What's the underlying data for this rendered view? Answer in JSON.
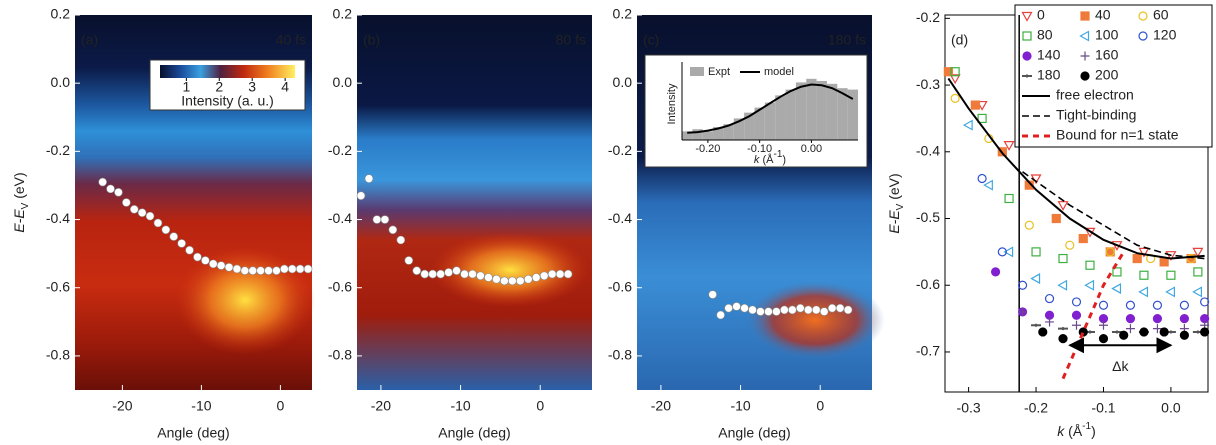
{
  "chart_data": [
    {
      "type": "heatmap",
      "panel_label": "(a)",
      "title": "40 fs",
      "xlabel": "Angle (deg)",
      "ylabel": [
        "E-E",
        "V",
        " (eV)"
      ],
      "xlim": [
        -26,
        4
      ],
      "ylim": [
        -0.9,
        0.2
      ],
      "xticks": [
        -20,
        -10,
        0
      ],
      "yticks": [
        0.2,
        {
          "value": 0,
          "label": "0.0"
        },
        -0.2,
        -0.4,
        -0.6,
        -0.8
      ],
      "points": {
        "color": "#ffffff",
        "x": [
          -22.5,
          -21.5,
          -20.5,
          -19.5,
          -18.5,
          -17.5,
          -16.5,
          -15.5,
          -14.5,
          -13.5,
          -12.5,
          -11.5,
          -10.5,
          -9.5,
          -8.5,
          -7.5,
          -6.5,
          -5.5,
          -4.5,
          -3.5,
          -2.5,
          -1.5,
          -0.5,
          0.5,
          1.5,
          2.5,
          3.5
        ],
        "y": [
          -0.29,
          -0.31,
          -0.32,
          -0.35,
          -0.37,
          -0.38,
          -0.39,
          -0.41,
          -0.43,
          -0.45,
          -0.47,
          -0.49,
          -0.51,
          -0.52,
          -0.53,
          -0.535,
          -0.54,
          -0.545,
          -0.55,
          -0.55,
          -0.55,
          -0.55,
          -0.55,
          -0.545,
          -0.545,
          -0.545,
          -0.545
        ]
      },
      "colorbar": {
        "label": "Intensity (a. u.)",
        "lim": [
          0.2,
          4.3
        ],
        "ticks": [
          1,
          2,
          3,
          4
        ]
      }
    },
    {
      "type": "heatmap",
      "panel_label": "(b)",
      "title": "80 fs",
      "xlabel": "Angle (deg)",
      "xlim": [
        -23,
        6.5
      ],
      "ylim": [
        -0.9,
        0.2
      ],
      "xticks": [
        -20,
        -10,
        0
      ],
      "yticks": [
        0.2,
        {
          "value": 0,
          "label": "0.0"
        },
        -0.2,
        -0.4,
        -0.6,
        -0.8
      ],
      "points": {
        "color": "#ffffff",
        "x": [
          -22.5,
          -21.5,
          -20.5,
          -19.5,
          -18.5,
          -17.5,
          -16.5,
          -15.5,
          -14.5,
          -13.5,
          -12.5,
          -11.5,
          -10.5,
          -9.5,
          -8.5,
          -7.5,
          -6.5,
          -5.5,
          -4.5,
          -3.5,
          -2.5,
          -1.5,
          -0.5,
          0.5,
          1.5,
          2.5,
          3.5
        ],
        "y": [
          -0.33,
          -0.28,
          -0.4,
          -0.4,
          -0.43,
          -0.46,
          -0.52,
          -0.55,
          -0.56,
          -0.56,
          -0.56,
          -0.555,
          -0.55,
          -0.56,
          -0.56,
          -0.565,
          -0.57,
          -0.575,
          -0.58,
          -0.58,
          -0.58,
          -0.575,
          -0.57,
          -0.565,
          -0.56,
          -0.56,
          -0.56
        ]
      }
    },
    {
      "type": "heatmap",
      "panel_label": "(c)",
      "title": "180 fs",
      "xlabel": "Angle (deg)",
      "xlim": [
        -23,
        6.5
      ],
      "ylim": [
        -0.9,
        0.2
      ],
      "xticks": [
        -20,
        -10,
        0
      ],
      "yticks": [
        0.2,
        {
          "value": 0,
          "label": "0.0"
        },
        -0.2,
        -0.4,
        -0.6,
        -0.8
      ],
      "points": {
        "color": "#ffffff",
        "x": [
          -13.5,
          -12.5,
          -11.5,
          -10.5,
          -9.5,
          -8.5,
          -7.5,
          -6.5,
          -5.5,
          -4.5,
          -3.5,
          -2.5,
          -1.5,
          -0.5,
          0.5,
          1.5,
          2.5,
          3.5
        ],
        "y": [
          -0.62,
          -0.68,
          -0.66,
          -0.655,
          -0.66,
          -0.665,
          -0.67,
          -0.67,
          -0.67,
          -0.665,
          -0.665,
          -0.66,
          -0.665,
          -0.665,
          -0.67,
          -0.66,
          -0.66,
          -0.665
        ]
      }
    },
    {
      "type": "scatter",
      "panel_label": "(d)",
      "xlabel": [
        "k",
        " (Å",
        "-1",
        ")"
      ],
      "ylabel": [
        "E-E",
        "V",
        " (eV)"
      ],
      "xlim": [
        -0.335,
        0.055
      ],
      "ylim": [
        -0.76,
        -0.195
      ],
      "xticks": [
        -0.3,
        -0.2,
        -0.1,
        {
          "value": 0,
          "label": "0.0"
        }
      ],
      "yticks": [
        -0.2,
        -0.3,
        -0.4,
        -0.5,
        -0.6,
        -0.7
      ],
      "vline": -0.225,
      "series": [
        {
          "name": "0",
          "color": "#e8403a",
          "marker": "tri-down",
          "filled": false,
          "x": [
            -0.32,
            -0.28,
            -0.24,
            -0.2,
            -0.16,
            -0.12,
            -0.08,
            -0.04,
            0,
            0.04
          ],
          "y": [
            -0.29,
            -0.33,
            -0.39,
            -0.44,
            -0.48,
            -0.52,
            -0.54,
            -0.55,
            -0.555,
            -0.55
          ]
        },
        {
          "name": "40",
          "color": "#f07a3a",
          "marker": "square",
          "filled": true,
          "x": [
            -0.33,
            -0.29,
            -0.25,
            -0.21,
            -0.17,
            -0.13,
            -0.09,
            -0.05,
            -0.01,
            0.03
          ],
          "y": [
            -0.28,
            -0.33,
            -0.4,
            -0.45,
            -0.5,
            -0.53,
            -0.55,
            -0.56,
            -0.565,
            -0.56
          ]
        },
        {
          "name": "60",
          "color": "#e8c020",
          "marker": "circle",
          "filled": false,
          "x": [
            -0.32,
            -0.27,
            -0.21,
            -0.15,
            -0.09,
            -0.03,
            0.03
          ],
          "y": [
            -0.32,
            -0.38,
            -0.51,
            -0.54,
            -0.55,
            -0.56,
            -0.56
          ]
        },
        {
          "name": "80",
          "color": "#3cb040",
          "marker": "square",
          "filled": false,
          "x": [
            -0.32,
            -0.28,
            -0.24,
            -0.2,
            -0.16,
            -0.12,
            -0.08,
            -0.04,
            0,
            0.04
          ],
          "y": [
            -0.28,
            -0.35,
            -0.47,
            -0.55,
            -0.56,
            -0.57,
            -0.58,
            -0.585,
            -0.585,
            -0.58
          ]
        },
        {
          "name": "100",
          "color": "#40a8e0",
          "marker": "tri-left",
          "filled": false,
          "x": [
            -0.3,
            -0.27,
            -0.24,
            -0.2,
            -0.16,
            -0.12,
            -0.08,
            -0.04,
            0,
            0.04
          ],
          "y": [
            -0.36,
            -0.45,
            -0.55,
            -0.59,
            -0.6,
            -0.6,
            -0.605,
            -0.61,
            -0.61,
            -0.61
          ]
        },
        {
          "name": "120",
          "color": "#3050d0",
          "marker": "circle",
          "filled": false,
          "x": [
            -0.28,
            -0.25,
            -0.22,
            -0.18,
            -0.14,
            -0.1,
            -0.06,
            -0.02,
            0.02,
            0.05
          ],
          "y": [
            -0.44,
            -0.55,
            -0.6,
            -0.62,
            -0.625,
            -0.63,
            -0.63,
            -0.63,
            -0.63,
            -0.625
          ]
        },
        {
          "name": "140",
          "color": "#8020d0",
          "marker": "circle",
          "filled": true,
          "x": [
            -0.26,
            -0.22,
            -0.18,
            -0.14,
            -0.1,
            -0.06,
            -0.02,
            0.02,
            0.05
          ],
          "y": [
            -0.58,
            -0.64,
            -0.645,
            -0.645,
            -0.65,
            -0.65,
            -0.65,
            -0.65,
            -0.65
          ]
        },
        {
          "name": "160",
          "color": "#6a4a8a",
          "marker": "plus",
          "filled": false,
          "x": [
            -0.22,
            -0.18,
            -0.14,
            -0.1,
            -0.06,
            -0.02,
            0.02,
            0.05
          ],
          "y": [
            -0.64,
            -0.655,
            -0.66,
            -0.66,
            -0.665,
            -0.665,
            -0.665,
            -0.66
          ]
        },
        {
          "name": "180",
          "color": "#555555",
          "marker": "dash",
          "filled": false,
          "x": [
            -0.2,
            -0.16,
            -0.12,
            -0.08,
            -0.04,
            0,
            0.04
          ],
          "y": [
            -0.66,
            -0.665,
            -0.67,
            -0.67,
            -0.67,
            -0.67,
            -0.67
          ]
        },
        {
          "name": "200",
          "color": "#000000",
          "marker": "circle",
          "filled": true,
          "x": [
            -0.19,
            -0.16,
            -0.13,
            -0.1,
            -0.07,
            -0.04,
            -0.01,
            0.02,
            0.05
          ],
          "y": [
            -0.67,
            -0.68,
            -0.67,
            -0.68,
            -0.675,
            -0.67,
            -0.67,
            -0.675,
            -0.67
          ]
        }
      ],
      "lines": [
        {
          "name": "free electron",
          "color": "#000000",
          "dash": "solid",
          "x": [
            -0.33,
            -0.3,
            -0.25,
            -0.2,
            -0.15,
            -0.1,
            -0.05,
            0,
            0.05
          ],
          "y": [
            -0.29,
            -0.335,
            -0.402,
            -0.457,
            -0.5,
            -0.532,
            -0.552,
            -0.56,
            -0.556
          ]
        },
        {
          "name": "Tight-binding",
          "color": "#000000",
          "dash": "dashed",
          "x": [
            -0.22,
            -0.15,
            -0.1,
            -0.05,
            0,
            0.05
          ],
          "y": [
            -0.43,
            -0.48,
            -0.51,
            -0.54,
            -0.555,
            -0.56
          ]
        },
        {
          "name": "Bound for n=1 state",
          "color": "#e02020",
          "dash": "bold-dashed",
          "x": [
            -0.16,
            -0.13,
            -0.1,
            -0.07
          ],
          "y": [
            -0.74,
            -0.67,
            -0.6,
            -0.55
          ]
        }
      ],
      "annotation": {
        "label": "Δk",
        "x": [
          -0.15,
          0
        ],
        "y": -0.69
      }
    },
    {
      "type": "inset",
      "ylabel": "Intensity",
      "xlabel": [
        "k",
        " (Å",
        "-1",
        ")"
      ],
      "xlim": [
        -0.25,
        0.09
      ],
      "ylim": [
        0,
        1
      ],
      "xticks": [
        {
          "value": -0.2,
          "label": "-0.20"
        },
        {
          "value": -0.1,
          "label": "-0.10"
        },
        {
          "value": 0,
          "label": "0.00"
        }
      ],
      "x": [
        -0.24,
        -0.22,
        -0.2,
        -0.18,
        -0.16,
        -0.14,
        -0.12,
        -0.1,
        -0.08,
        -0.06,
        -0.04,
        -0.02,
        0,
        0.02,
        0.04,
        0.06,
        0.08
      ],
      "series": [
        {
          "name": "Expt",
          "color": "#aaaaaa",
          "values": [
            0.12,
            0.15,
            0.12,
            0.18,
            0.22,
            0.3,
            0.38,
            0.45,
            0.52,
            0.62,
            0.7,
            0.8,
            0.85,
            0.82,
            0.78,
            0.72,
            0.7
          ]
        },
        {
          "name": "model",
          "color": "#000000",
          "values": [
            0.1,
            0.11,
            0.13,
            0.16,
            0.2,
            0.26,
            0.33,
            0.42,
            0.51,
            0.6,
            0.68,
            0.74,
            0.77,
            0.76,
            0.72,
            0.65,
            0.57
          ]
        }
      ]
    }
  ]
}
